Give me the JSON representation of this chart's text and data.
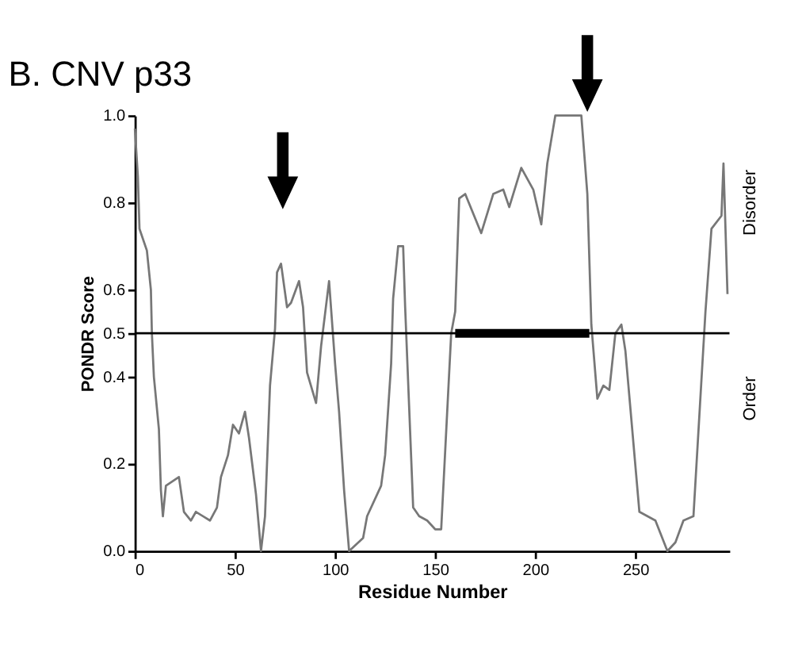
{
  "chart_data": {
    "type": "line",
    "title": "B. CNV p33",
    "xlabel": "Residue Number",
    "ylabel": "PONDR Score",
    "annotations": [
      "Disorder",
      "Order"
    ],
    "series": [
      {
        "color": "#777777",
        "x": [
          0,
          1.5,
          2.3,
          6,
          8,
          8.5,
          9.5,
          12,
          13,
          14,
          15.5,
          22,
          24.5,
          28,
          30.5,
          37.5,
          41,
          43,
          46.5,
          49,
          52,
          55,
          57,
          60.5,
          63,
          65,
          67.5,
          70,
          71,
          73,
          76,
          78,
          82,
          84,
          86,
          90.5,
          93,
          97,
          100,
          102,
          104.5,
          107,
          114,
          116,
          123,
          125,
          128,
          129,
          131.5,
          134,
          135,
          139,
          142,
          146,
          150,
          153,
          155,
          158,
          160,
          162,
          165,
          173,
          179,
          184,
          187,
          193,
          199,
          203,
          206,
          210,
          223,
          226,
          228,
          231,
          234,
          237,
          240,
          243,
          245,
          252,
          260,
          266,
          270,
          274,
          279,
          285,
          288,
          293,
          294,
          296
        ],
        "values": [
          0.97,
          0.86,
          0.74,
          0.69,
          0.6,
          0.5,
          0.4,
          0.28,
          0.14,
          0.08,
          0.15,
          0.17,
          0.09,
          0.07,
          0.09,
          0.07,
          0.1,
          0.17,
          0.22,
          0.29,
          0.27,
          0.32,
          0.26,
          0.13,
          0.0,
          0.08,
          0.38,
          0.51,
          0.64,
          0.66,
          0.56,
          0.57,
          0.62,
          0.56,
          0.41,
          0.34,
          0.47,
          0.62,
          0.43,
          0.32,
          0.14,
          0.0,
          0.03,
          0.08,
          0.15,
          0.22,
          0.43,
          0.58,
          0.7,
          0.7,
          0.56,
          0.1,
          0.08,
          0.07,
          0.05,
          0.05,
          0.23,
          0.5,
          0.55,
          0.81,
          0.82,
          0.73,
          0.82,
          0.83,
          0.79,
          0.88,
          0.83,
          0.75,
          0.89,
          1.0,
          1.0,
          0.82,
          0.52,
          0.35,
          0.38,
          0.37,
          0.5,
          0.52,
          0.46,
          0.09,
          0.07,
          0.0,
          0.02,
          0.07,
          0.08,
          0.55,
          0.74,
          0.77,
          0.89,
          0.59
        ]
      },
      {
        "color": "#000000",
        "x": [
          160,
          227
        ],
        "values": [
          0.5,
          0.5
        ]
      }
    ],
    "ref_lines": [
      {
        "axis": "y",
        "value": 0.5,
        "color": "#000000"
      }
    ],
    "xlim": [
      0,
      297
    ],
    "xticks": [
      0,
      50,
      100,
      150,
      200,
      250
    ],
    "ylim": [
      0,
      1
    ],
    "yticks": [
      {
        "value": 0,
        "label": "0.0"
      },
      0.2,
      0.4,
      0.5,
      0.6,
      0.8,
      {
        "value": 1,
        "label": "1.0"
      }
    ],
    "grid": false,
    "marker": "none",
    "line_style": "solid"
  }
}
